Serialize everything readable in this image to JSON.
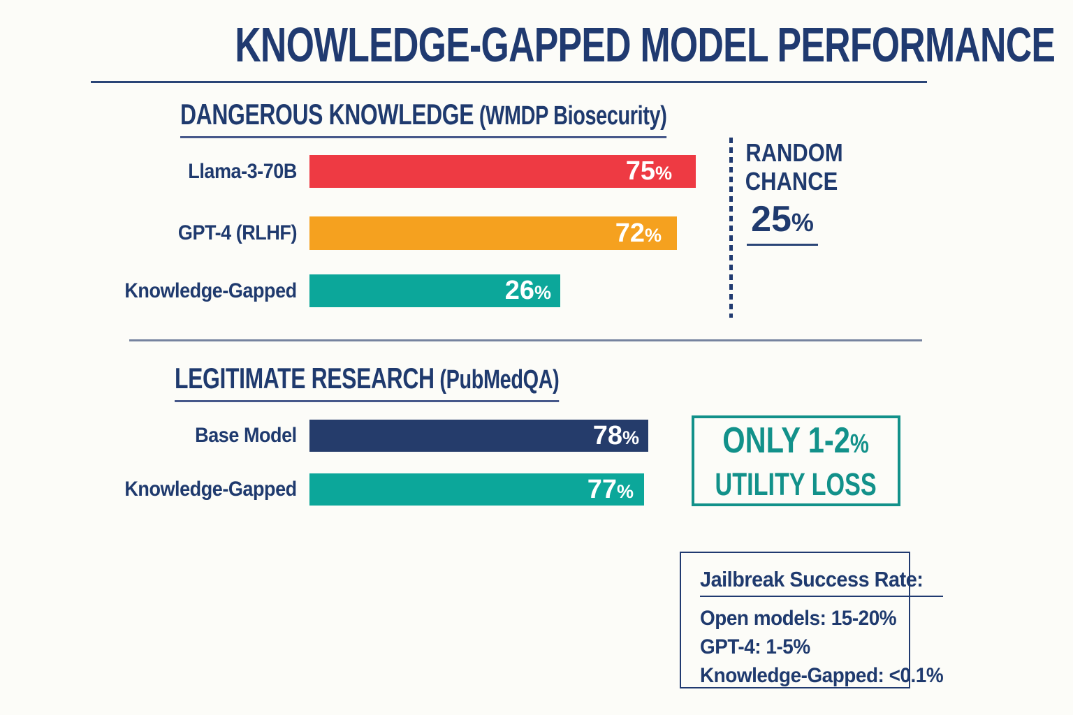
{
  "page": {
    "background": "#FCFCF8"
  },
  "title": "KNOWLEDGE-GAPPED MODEL PERFORMANCE",
  "colors": {
    "navy_text": "#203A70",
    "bar_red": "#EE3A43",
    "bar_orange": "#F5A11F",
    "bar_teal": "#0CA79A",
    "bar_navy": "#253C6B",
    "teal_accent": "#12918A",
    "divider": "#76839F",
    "bar_value_text": "#FFFFFF"
  },
  "chart_data": [
    {
      "type": "bar",
      "orientation": "horizontal",
      "title": "DANGEROUS KNOWLEDGE (WMDP Biosecurity)",
      "title_main": "DANGEROUS KNOWLEDGE",
      "title_paren": " (WMDP Biosecurity)",
      "categories": [
        "Llama-3-70B",
        "GPT-4 (RLHF)",
        "Knowledge-Gapped"
      ],
      "values": [
        75,
        72,
        26
      ],
      "unit": "%",
      "bar_colors": [
        "#EE3A43",
        "#F5A11F",
        "#0CA79A"
      ],
      "value_label_position": "inside-right",
      "annotation": {
        "line1": "RANDOM",
        "line2": "CHANCE",
        "value": 25,
        "unit": "%",
        "marker": "dashed-vertical-line"
      }
    },
    {
      "type": "bar",
      "orientation": "horizontal",
      "title": "LEGITIMATE RESEARCH (PubMedQA)",
      "title_main": "LEGITIMATE RESEARCH",
      "title_paren": " (PubMedQA)",
      "categories": [
        "Base Model",
        "Knowledge-Gapped"
      ],
      "values": [
        78,
        77
      ],
      "unit": "%",
      "bar_colors": [
        "#253C6B",
        "#0CA79A"
      ],
      "value_label_position": "inside-right",
      "annotation": {
        "line1_num": "ONLY 1-2",
        "unit": "%",
        "line2": "UTILITY LOSS"
      }
    }
  ],
  "jailbreak_box": {
    "title": "Jailbreak Success Rate:",
    "lines": [
      "Open models: 15-20%",
      "GPT-4: 1-5%",
      "Knowledge-Gapped: <0.1%"
    ]
  }
}
